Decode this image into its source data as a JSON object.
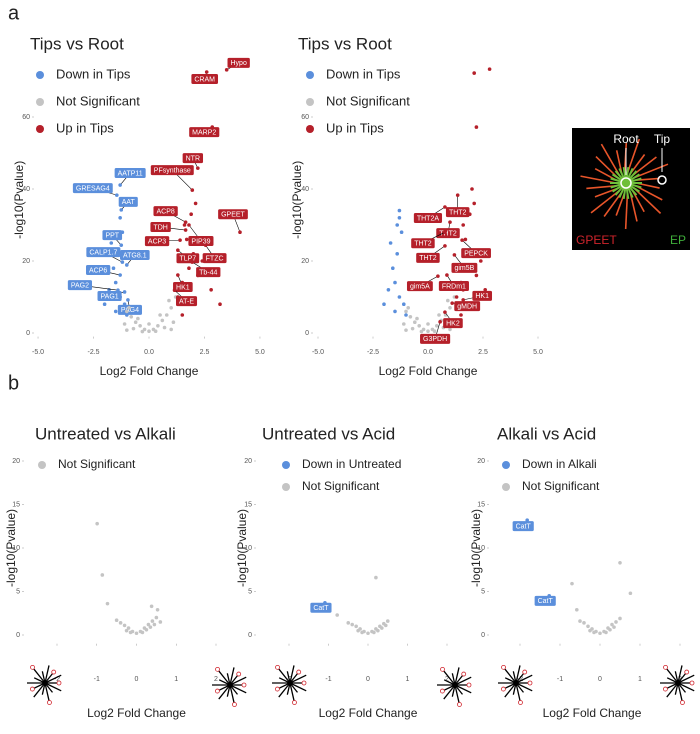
{
  "panel_labels": [
    "a",
    "b"
  ],
  "inset": {
    "labels": [
      "Root",
      "Tip",
      "GPEET",
      "EP"
    ]
  },
  "chart_data": [
    {
      "type": "scatter",
      "title": "Tips vs Root",
      "x_label": "Log2 Fold Change",
      "y_label": "-log10(Pvalue)",
      "xlim": [
        -5.2,
        5.2
      ],
      "ylim": [
        -1,
        75
      ],
      "xticks": [
        {
          "value": -5,
          "label": "-5.0"
        },
        {
          "value": -2.5,
          "label": "-2.5"
        },
        {
          "value": 0,
          "label": "0.0"
        },
        2.5,
        {
          "value": 5,
          "label": "5.0"
        }
      ],
      "yticks": [
        0,
        20,
        40,
        60
      ],
      "series": [
        {
          "name": "Down in Tips",
          "color": "#5b8fdc",
          "x": [
            -1.3,
            -1.5,
            -1.4,
            -1.2,
            -1.6,
            -1.8,
            -1.1,
            -1.3,
            -1.5,
            -2.0,
            -1.7,
            -1.0
          ],
          "y": [
            10,
            14,
            22,
            28,
            18,
            12,
            8,
            32,
            6,
            8,
            25,
            5
          ],
          "annotations": [
            {
              "text": "AATP11",
              "x": -1.3,
              "y": 41.1
            },
            {
              "text": "GRESAG4",
              "x": -1.45,
              "y": 38.3
            },
            {
              "text": "AAT",
              "x": -1.25,
              "y": 34.2
            },
            {
              "text": "PPT",
              "x": -1.25,
              "y": 24.4
            },
            {
              "text": "CALP1.7",
              "x": -1.2,
              "y": 19.7
            },
            {
              "text": "ATG8.1",
              "x": -1.0,
              "y": 18.9
            },
            {
              "text": "ACP6",
              "x": -1.3,
              "y": 16.1
            },
            {
              "text": "PAG2",
              "x": -1.4,
              "y": 11.9
            },
            {
              "text": "PAG1",
              "x": -1.1,
              "y": 11.4
            },
            {
              "text": "PAG4",
              "x": -0.95,
              "y": 9.2
            }
          ]
        },
        {
          "name": "Not Significant",
          "color": "#c4c4c4",
          "x": [
            0,
            0.2,
            -0.2,
            0.4,
            -0.4,
            0.6,
            -0.6,
            0.8,
            -0.8,
            1.0,
            -1.0,
            0.3,
            -0.3,
            0.7,
            -0.7,
            1.1,
            -1.1,
            0.5,
            -0.5,
            0.9,
            -0.9,
            1.2,
            1.0,
            -1.0,
            0
          ],
          "y": [
            0.5,
            1,
            1,
            2,
            2,
            3.5,
            3,
            5,
            4.5,
            7,
            6,
            0.5,
            0.4,
            1.5,
            1.2,
            3,
            2.5,
            5,
            4,
            9,
            7,
            10,
            1,
            0.8,
            2.5
          ],
          "annotations": []
        },
        {
          "name": "Up in Tips",
          "color": "#b5202a",
          "x": [
            1.3,
            1.5,
            1.6,
            1.8,
            2.0,
            1.4,
            2.2,
            1.7,
            2.4,
            1.9,
            2.1,
            1.5,
            2.8,
            3.2,
            1.6,
            2.0
          ],
          "y": [
            10,
            14,
            12,
            18,
            22,
            8,
            16,
            26,
            20,
            33,
            36,
            5,
            12,
            8,
            30,
            9
          ],
          "annotations": [
            {
              "text": "Hypo",
              "x": 3.5,
              "y": 73.1
            },
            {
              "text": "CRAM",
              "x": 2.6,
              "y": 72.5
            },
            {
              "text": "MARP2",
              "x": 2.85,
              "y": 57.2
            },
            {
              "text": "PFsynthase",
              "x": 1.95,
              "y": 39.7
            },
            {
              "text": "NTR",
              "x": 2.2,
              "y": 45.8
            },
            {
              "text": "GPEET",
              "x": 4.1,
              "y": 28
            },
            {
              "text": "ACP8",
              "x": 1.65,
              "y": 30.8
            },
            {
              "text": "TDH",
              "x": 1.65,
              "y": 28.6
            },
            {
              "text": "ACP3",
              "x": 1.4,
              "y": 25.8
            },
            {
              "text": "PIP39",
              "x": 1.8,
              "y": 30
            },
            {
              "text": "TLP7",
              "x": 1.3,
              "y": 23
            },
            {
              "text": "FTZC",
              "x": 2.55,
              "y": 24.4
            },
            {
              "text": "Tb-44",
              "x": 1.95,
              "y": 19.7
            },
            {
              "text": "HK1",
              "x": 1.3,
              "y": 16.1
            },
            {
              "text": "AT-E",
              "x": 1.15,
              "y": 11.9
            }
          ]
        }
      ]
    },
    {
      "type": "scatter",
      "title": "Tips vs Root",
      "x_label": "Log2 Fold Change",
      "y_label": "-log10(Pvalue)",
      "xlim": [
        -5.2,
        5.2
      ],
      "ylim": [
        -1,
        75
      ],
      "xticks": [
        {
          "value": -5,
          "label": "-5.0"
        },
        {
          "value": -2.5,
          "label": "-2.5"
        },
        {
          "value": 0,
          "label": "0.0"
        },
        2.5,
        {
          "value": 5,
          "label": "5.0"
        }
      ],
      "yticks": [
        0,
        20,
        40,
        60
      ],
      "series": [
        {
          "name": "Down in Tips",
          "color": "#5b8fdc",
          "x": [
            -1.3,
            -1.5,
            -1.4,
            -1.2,
            -1.6,
            -1.8,
            -1.1,
            -1.3,
            -1.5,
            -2.0,
            -1.7,
            -1.0,
            -1.3,
            -1.4
          ],
          "y": [
            10,
            14,
            22,
            28,
            18,
            12,
            8,
            32,
            6,
            8,
            25,
            5,
            34,
            30
          ],
          "annotations": []
        },
        {
          "name": "Not Significant",
          "color": "#c4c4c4",
          "x": [
            0,
            0.2,
            -0.2,
            0.4,
            -0.4,
            0.6,
            -0.6,
            0.8,
            -0.8,
            1.0,
            -1.0,
            0.3,
            -0.3,
            0.7,
            -0.7,
            1.1,
            -1.1,
            0.5,
            -0.5,
            0.9,
            -0.9,
            1.2,
            1.0,
            -1.0,
            0
          ],
          "y": [
            0.5,
            1,
            1,
            2,
            2,
            3.5,
            3,
            5,
            4.5,
            7,
            6,
            0.5,
            0.4,
            1.5,
            1.2,
            3,
            2.5,
            5,
            4,
            9,
            7,
            10,
            1,
            0.8,
            2.5
          ],
          "annotations": []
        },
        {
          "name": "Up in Tips",
          "color": "#b5202a",
          "x": [
            2.1,
            2.8,
            2.2,
            1.3,
            1.5,
            1.6,
            1.8,
            2.0,
            1.4,
            2.2,
            1.7,
            2.4,
            1.9,
            2.1,
            1.5,
            2.6,
            1.6,
            2.0
          ],
          "y": [
            72.2,
            73.3,
            57.2,
            10,
            14,
            12,
            18,
            22,
            8,
            16,
            26,
            20,
            33,
            36,
            5,
            12,
            30,
            40
          ],
          "annotations": [
            {
              "text": "THT2A",
              "x": 0.77,
              "y": 35
            },
            {
              "text": "THT2",
              "x": 1.35,
              "y": 38.3
            },
            {
              "text": "THT2",
              "x": 1.0,
              "y": 30.8
            },
            {
              "text": "THT2",
              "x": 0.77,
              "y": 28
            },
            {
              "text": "THT2",
              "x": 0.77,
              "y": 24.2
            },
            {
              "text": "PEPCK",
              "x": 1.55,
              "y": 25.8
            },
            {
              "text": "gim5B",
              "x": 1.2,
              "y": 21.7
            },
            {
              "text": "gim5A",
              "x": 0.45,
              "y": 15.8
            },
            {
              "text": "FRDm1",
              "x": 0.86,
              "y": 16.1
            },
            {
              "text": "HK1",
              "x": 1.6,
              "y": 9.2
            },
            {
              "text": "gMDH",
              "x": 1.1,
              "y": 8.3
            },
            {
              "text": "HK2",
              "x": 0.77,
              "y": 5.8
            },
            {
              "text": "G3PDH",
              "x": 0.55,
              "y": 3.1
            }
          ]
        }
      ]
    },
    {
      "type": "scatter",
      "title": "Untreated vs Alkali",
      "x_label": "Log2 Fold Change",
      "y_label": "-log10(Pvalue)",
      "xlim": [
        -2.8,
        2.8
      ],
      "ylim": [
        -1,
        21
      ],
      "xticks": [
        -2,
        -1,
        0,
        1,
        2
      ],
      "yticks": [
        0,
        5,
        10,
        15,
        20
      ],
      "series": [
        {
          "name": "Not Significant",
          "color": "#c4c4c4",
          "x": [
            -0.99,
            -0.86,
            -0.73,
            0.38,
            0.53,
            0,
            0.1,
            -0.1,
            0.2,
            -0.2,
            0.3,
            -0.3,
            0.4,
            -0.4,
            0.5,
            -0.5,
            0.15,
            -0.15,
            0.25,
            -0.25,
            0.35,
            0.45,
            0.6
          ],
          "y": [
            12.8,
            6.9,
            3.6,
            3.3,
            2.9,
            0.2,
            0.4,
            0.4,
            0.8,
            0.8,
            1.2,
            1.1,
            1.6,
            1.4,
            2.0,
            1.7,
            0.3,
            0.3,
            0.6,
            0.5,
            0.9,
            1.2,
            1.5
          ],
          "annotations": []
        }
      ]
    },
    {
      "type": "scatter",
      "title": "Untreated vs Acid",
      "x_label": "Log2 Fold Change",
      "y_label": "-log10(Pvalue)",
      "xlim": [
        -2.8,
        2.8
      ],
      "ylim": [
        -1,
        21
      ],
      "xticks": [
        -2,
        -1,
        0,
        1,
        2
      ],
      "yticks": [
        0,
        5,
        10,
        15,
        20
      ],
      "series": [
        {
          "name": "Down in Untreated",
          "color": "#5b8fdc",
          "x": [],
          "y": [],
          "annotations": [
            {
              "text": "CatT",
              "x": -1.09,
              "y": 3.7
            }
          ]
        },
        {
          "name": "Not Significant",
          "color": "#c4c4c4",
          "x": [
            -0.78,
            0.2,
            0,
            0.1,
            -0.1,
            0.2,
            -0.2,
            0.3,
            -0.3,
            0.4,
            -0.4,
            0.5,
            -0.5,
            0.15,
            -0.15,
            0.25,
            -0.25,
            0.35,
            0.45
          ],
          "y": [
            2.3,
            6.6,
            0.2,
            0.4,
            0.4,
            0.7,
            0.7,
            1.0,
            1.0,
            1.3,
            1.2,
            1.6,
            1.4,
            0.3,
            0.3,
            0.5,
            0.5,
            0.8,
            1.1
          ],
          "annotations": []
        }
      ]
    },
    {
      "type": "scatter",
      "title": "Alkali vs Acid",
      "x_label": "Log2 Fold Change",
      "y_label": "-log10(Pvalue)",
      "xlim": [
        -2.8,
        2.4
      ],
      "ylim": [
        -1,
        21
      ],
      "xticks": [
        -2,
        -1,
        0,
        1,
        2
      ],
      "yticks": [
        0,
        5,
        10,
        15,
        20
      ],
      "series": [
        {
          "name": "Down in Alkali",
          "color": "#5b8fdc",
          "x": [],
          "y": [],
          "annotations": [
            {
              "text": "CatT",
              "x": -1.82,
              "y": 13.2
            },
            {
              "text": "CatT",
              "x": -1.27,
              "y": 4.5
            }
          ]
        },
        {
          "name": "Not Significant",
          "color": "#c4c4c4",
          "x": [
            0.5,
            0.76,
            -0.7,
            -0.58,
            0,
            0.1,
            -0.1,
            0.2,
            -0.2,
            0.3,
            -0.3,
            0.4,
            -0.4,
            0.5,
            -0.5,
            0.15,
            -0.15,
            0.25,
            -0.25,
            0.35
          ],
          "y": [
            8.3,
            4.8,
            5.9,
            2.9,
            0.2,
            0.4,
            0.4,
            0.8,
            0.7,
            1.2,
            1.0,
            1.5,
            1.4,
            1.9,
            1.6,
            0.3,
            0.3,
            0.6,
            0.5,
            0.9
          ],
          "annotations": []
        }
      ]
    }
  ]
}
